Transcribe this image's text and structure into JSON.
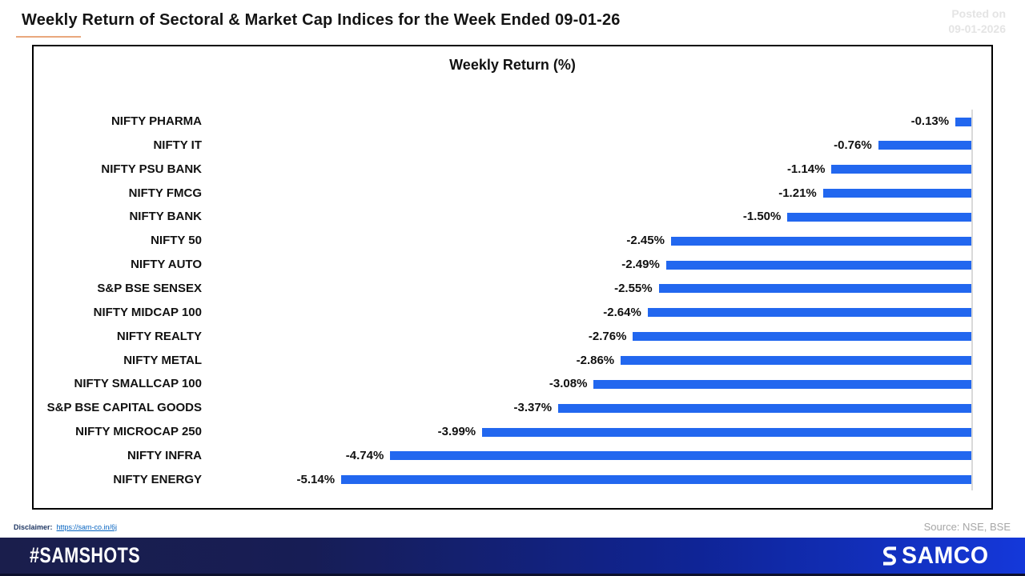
{
  "header": {
    "title": "Weekly Return of Sectoral & Market Cap Indices for the Week Ended 09-01-26",
    "posted_on_label": "Posted on",
    "posted_on_date": "09-01-2026"
  },
  "chart_data": {
    "type": "bar",
    "orientation": "horizontal",
    "title": "Weekly Return (%)",
    "categories": [
      "NIFTY PHARMA",
      "NIFTY IT",
      "NIFTY PSU BANK",
      "NIFTY FMCG",
      "NIFTY BANK",
      "NIFTY 50",
      "NIFTY AUTO",
      "S&P BSE SENSEX",
      "NIFTY MIDCAP 100",
      "NIFTY REALTY",
      "NIFTY METAL",
      "NIFTY SMALLCAP 100",
      "S&P BSE CAPITAL GOODS",
      "NIFTY MICROCAP 250",
      "NIFTY INFRA",
      "NIFTY ENERGY"
    ],
    "values": [
      -0.13,
      -0.76,
      -1.14,
      -1.21,
      -1.5,
      -2.45,
      -2.49,
      -2.55,
      -2.64,
      -2.76,
      -2.86,
      -3.08,
      -3.37,
      -3.99,
      -4.74,
      -5.14
    ],
    "value_labels": [
      "-0.13%",
      "-0.76%",
      "-1.14%",
      "-1.21%",
      "-1.50%",
      "-2.45%",
      "-2.49%",
      "-2.55%",
      "-2.64%",
      "-2.76%",
      "-2.86%",
      "-3.08%",
      "-3.37%",
      "-3.99%",
      "-4.74%",
      "-5.14%"
    ],
    "xlim": [
      -5.5,
      0
    ],
    "grid": false,
    "legend": "none",
    "bar_color": "#2267ef",
    "axis_line_color": "#d9d9d9"
  },
  "footer_meta": {
    "disclaimer_label": "Disclaimer:",
    "disclaimer_link": "https://sam-co.in/6j",
    "source": "Source: NSE, BSE"
  },
  "footer_bar": {
    "hashtag": "#SAMSHOTS",
    "brand": "SAMCO",
    "gradient_left": "#1a1e4c",
    "gradient_right": "#1438da"
  }
}
